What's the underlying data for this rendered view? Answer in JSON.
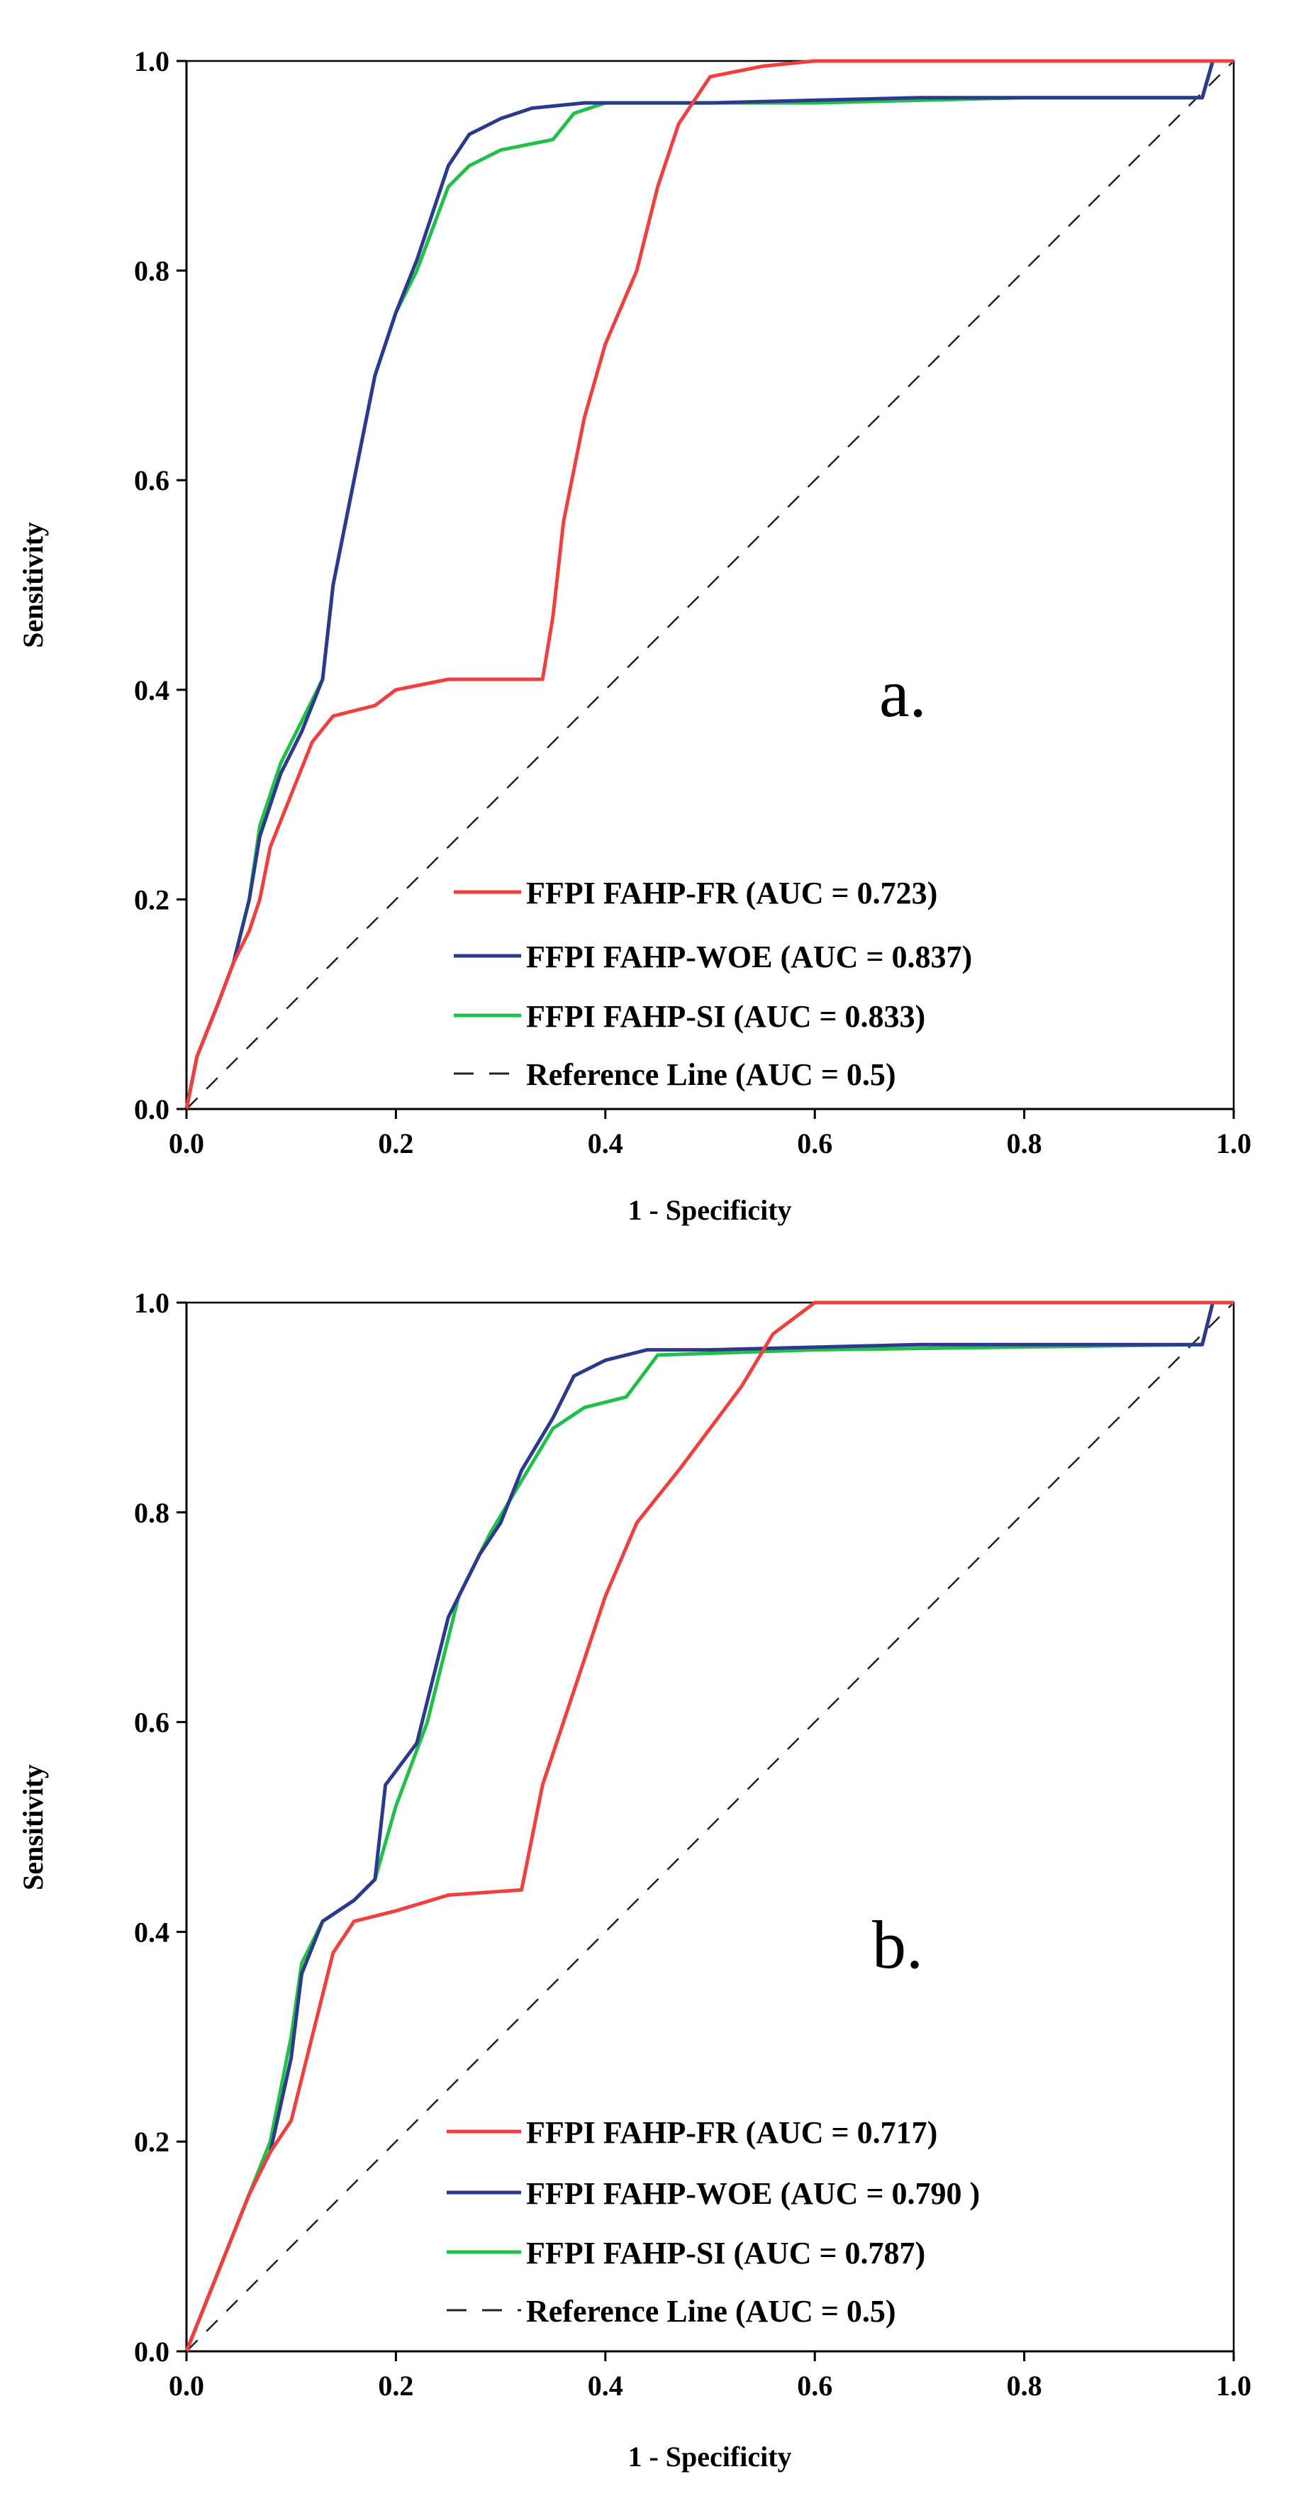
{
  "chart_data": [
    {
      "type": "line",
      "panel_label": "a.",
      "xlabel": "1 - Specificity",
      "ylabel": "Sensitivity",
      "xlim": [
        0,
        1
      ],
      "ylim": [
        0,
        1
      ],
      "x_ticks": [
        "0.0",
        "0.2",
        "0.4",
        "0.6",
        "0.8",
        "1.0"
      ],
      "y_ticks": [
        "0.0",
        "0.2",
        "0.4",
        "0.6",
        "0.8",
        "1.0"
      ],
      "legend_position": "bottom-right",
      "series": [
        {
          "name": "FFPI FAHP-FR (AUC = 0.723)",
          "color": "#ef4040",
          "dash": "solid",
          "points": [
            [
              0,
              0
            ],
            [
              0.01,
              0.05
            ],
            [
              0.03,
              0.1
            ],
            [
              0.045,
              0.14
            ],
            [
              0.06,
              0.17
            ],
            [
              0.07,
              0.2
            ],
            [
              0.08,
              0.25
            ],
            [
              0.1,
              0.3
            ],
            [
              0.12,
              0.35
            ],
            [
              0.14,
              0.375
            ],
            [
              0.18,
              0.385
            ],
            [
              0.2,
              0.4
            ],
            [
              0.25,
              0.41
            ],
            [
              0.34,
              0.41
            ],
            [
              0.35,
              0.47
            ],
            [
              0.36,
              0.56
            ],
            [
              0.38,
              0.66
            ],
            [
              0.4,
              0.73
            ],
            [
              0.43,
              0.8
            ],
            [
              0.45,
              0.88
            ],
            [
              0.47,
              0.94
            ],
            [
              0.5,
              0.985
            ],
            [
              0.55,
              0.995
            ],
            [
              0.6,
              1.0
            ],
            [
              0.7,
              1.0
            ],
            [
              1.0,
              1.0
            ]
          ]
        },
        {
          "name": "FFPI FAHP-WOE (AUC = 0.837)",
          "color": "#2b3a8c",
          "dash": "solid",
          "points": [
            [
              0,
              0
            ],
            [
              0.01,
              0.05
            ],
            [
              0.03,
              0.1
            ],
            [
              0.045,
              0.14
            ],
            [
              0.06,
              0.2
            ],
            [
              0.07,
              0.26
            ],
            [
              0.09,
              0.32
            ],
            [
              0.11,
              0.36
            ],
            [
              0.13,
              0.41
            ],
            [
              0.14,
              0.5
            ],
            [
              0.16,
              0.6
            ],
            [
              0.18,
              0.7
            ],
            [
              0.2,
              0.76
            ],
            [
              0.22,
              0.81
            ],
            [
              0.25,
              0.9
            ],
            [
              0.27,
              0.93
            ],
            [
              0.3,
              0.945
            ],
            [
              0.33,
              0.955
            ],
            [
              0.38,
              0.96
            ],
            [
              0.5,
              0.96
            ],
            [
              0.7,
              0.965
            ],
            [
              0.97,
              0.965
            ],
            [
              0.98,
              1.0
            ],
            [
              1.0,
              1.0
            ]
          ]
        },
        {
          "name": "FFPI FAHP-SI (AUC = 0.833)",
          "color": "#22c04a",
          "dash": "solid",
          "points": [
            [
              0,
              0
            ],
            [
              0.01,
              0.05
            ],
            [
              0.03,
              0.1
            ],
            [
              0.045,
              0.14
            ],
            [
              0.06,
              0.2
            ],
            [
              0.07,
              0.27
            ],
            [
              0.09,
              0.33
            ],
            [
              0.11,
              0.37
            ],
            [
              0.13,
              0.41
            ],
            [
              0.14,
              0.5
            ],
            [
              0.16,
              0.6
            ],
            [
              0.18,
              0.7
            ],
            [
              0.2,
              0.76
            ],
            [
              0.22,
              0.8
            ],
            [
              0.25,
              0.88
            ],
            [
              0.27,
              0.9
            ],
            [
              0.3,
              0.915
            ],
            [
              0.35,
              0.925
            ],
            [
              0.37,
              0.95
            ],
            [
              0.4,
              0.96
            ],
            [
              0.6,
              0.96
            ],
            [
              0.8,
              0.965
            ],
            [
              0.97,
              0.965
            ],
            [
              0.98,
              1.0
            ],
            [
              1.0,
              1.0
            ]
          ]
        },
        {
          "name": "Reference Line (AUC = 0.5)",
          "color": "#222222",
          "dash": "dashed",
          "points": [
            [
              0,
              0
            ],
            [
              1,
              1
            ]
          ]
        }
      ]
    },
    {
      "type": "line",
      "panel_label": "b.",
      "xlabel": "1 - Specificity",
      "ylabel": "Sensitivity",
      "xlim": [
        0,
        1
      ],
      "ylim": [
        0,
        1
      ],
      "x_ticks": [
        "0.0",
        "0.2",
        "0.4",
        "0.6",
        "0.8",
        "1.0"
      ],
      "y_ticks": [
        "0.0",
        "0.2",
        "0.4",
        "0.6",
        "0.8",
        "1.0"
      ],
      "legend_position": "bottom-right",
      "series": [
        {
          "name": "FFPI FAHP-FR (AUC = 0.717)",
          "color": "#ef4040",
          "dash": "solid",
          "points": [
            [
              0,
              0
            ],
            [
              0.02,
              0.05
            ],
            [
              0.04,
              0.1
            ],
            [
              0.06,
              0.15
            ],
            [
              0.08,
              0.19
            ],
            [
              0.1,
              0.22
            ],
            [
              0.12,
              0.3
            ],
            [
              0.14,
              0.38
            ],
            [
              0.16,
              0.41
            ],
            [
              0.2,
              0.42
            ],
            [
              0.25,
              0.435
            ],
            [
              0.32,
              0.44
            ],
            [
              0.34,
              0.54
            ],
            [
              0.36,
              0.6
            ],
            [
              0.38,
              0.66
            ],
            [
              0.4,
              0.72
            ],
            [
              0.43,
              0.79
            ],
            [
              0.47,
              0.84
            ],
            [
              0.5,
              0.88
            ],
            [
              0.53,
              0.92
            ],
            [
              0.56,
              0.97
            ],
            [
              0.6,
              1.0
            ],
            [
              1.0,
              1.0
            ]
          ]
        },
        {
          "name": "FFPI FAHP-WOE (AUC = 0.790 )",
          "color": "#2b3a8c",
          "dash": "solid",
          "points": [
            [
              0,
              0
            ],
            [
              0.02,
              0.05
            ],
            [
              0.04,
              0.1
            ],
            [
              0.06,
              0.15
            ],
            [
              0.08,
              0.19
            ],
            [
              0.1,
              0.28
            ],
            [
              0.11,
              0.36
            ],
            [
              0.13,
              0.41
            ],
            [
              0.16,
              0.43
            ],
            [
              0.18,
              0.45
            ],
            [
              0.19,
              0.54
            ],
            [
              0.22,
              0.58
            ],
            [
              0.25,
              0.7
            ],
            [
              0.28,
              0.76
            ],
            [
              0.3,
              0.79
            ],
            [
              0.32,
              0.84
            ],
            [
              0.35,
              0.89
            ],
            [
              0.37,
              0.93
            ],
            [
              0.4,
              0.945
            ],
            [
              0.44,
              0.955
            ],
            [
              0.5,
              0.955
            ],
            [
              0.7,
              0.96
            ],
            [
              0.97,
              0.96
            ],
            [
              0.98,
              1.0
            ],
            [
              1.0,
              1.0
            ]
          ]
        },
        {
          "name": "FFPI FAHP-SI (AUC = 0.787)",
          "color": "#22c04a",
          "dash": "solid",
          "points": [
            [
              0,
              0
            ],
            [
              0.02,
              0.05
            ],
            [
              0.04,
              0.1
            ],
            [
              0.06,
              0.15
            ],
            [
              0.08,
              0.2
            ],
            [
              0.1,
              0.3
            ],
            [
              0.11,
              0.37
            ],
            [
              0.13,
              0.41
            ],
            [
              0.16,
              0.43
            ],
            [
              0.18,
              0.45
            ],
            [
              0.2,
              0.52
            ],
            [
              0.23,
              0.6
            ],
            [
              0.26,
              0.72
            ],
            [
              0.29,
              0.78
            ],
            [
              0.32,
              0.83
            ],
            [
              0.35,
              0.88
            ],
            [
              0.38,
              0.9
            ],
            [
              0.42,
              0.91
            ],
            [
              0.45,
              0.95
            ],
            [
              0.6,
              0.955
            ],
            [
              0.97,
              0.96
            ],
            [
              0.98,
              1.0
            ],
            [
              1.0,
              1.0
            ]
          ]
        },
        {
          "name": "Reference Line (AUC = 0.5)",
          "color": "#222222",
          "dash": "dashed",
          "points": [
            [
              0,
              0
            ],
            [
              1,
              1
            ]
          ]
        }
      ]
    }
  ]
}
